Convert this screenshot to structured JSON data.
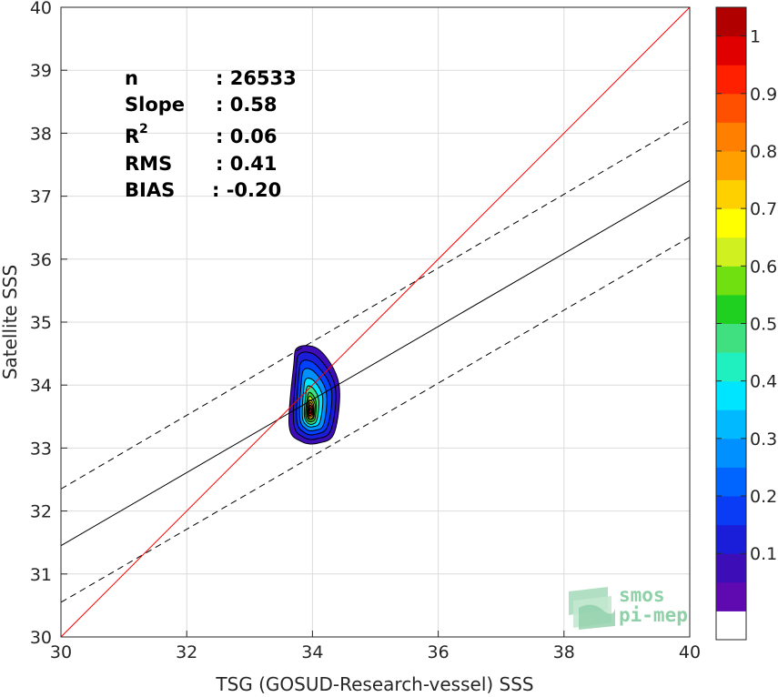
{
  "chart_data": {
    "type": "contour-scatter",
    "xlabel": "TSG (GOSUD-Research-vessel) SSS",
    "ylabel": "Satellite SSS",
    "xlim": [
      30,
      40
    ],
    "ylim": [
      30,
      40
    ],
    "x_ticks": [
      "30",
      "32",
      "34",
      "36",
      "38",
      "40"
    ],
    "y_ticks": [
      "30",
      "31",
      "32",
      "33",
      "34",
      "35",
      "36",
      "37",
      "38",
      "39",
      "40"
    ],
    "grid": true,
    "stats": {
      "n_label": "n",
      "n_value": ": 26533",
      "slope_label": "Slope",
      "slope_value": ": 0.58",
      "r2_label": "R",
      "r2_sup": "2",
      "r2_value": ": 0.06",
      "rms_label": "RMS",
      "rms_value": ": 0.41",
      "bias_label": "BIAS",
      "bias_value": ": -0.20"
    },
    "lines": {
      "one_to_one": {
        "x": [
          30,
          40
        ],
        "y": [
          30,
          40
        ],
        "color": "#ff0000"
      },
      "regression": {
        "x": [
          30,
          40
        ],
        "y": [
          31.45,
          37.25
        ],
        "color": "#000000"
      },
      "upper_bound": {
        "x": [
          30,
          40
        ],
        "y": [
          32.35,
          38.2
        ],
        "color": "#000000",
        "style": "dashed"
      },
      "lower_bound": {
        "x": [
          30,
          40
        ],
        "y": [
          30.55,
          36.35
        ],
        "color": "#000000",
        "style": "dashed"
      }
    },
    "density_peak": {
      "x": 33.97,
      "y": 33.6
    },
    "contour_levels": [
      {
        "level": 0.05,
        "x": [
          33.77,
          34.12,
          34.42,
          34.35,
          34.1,
          33.83,
          33.63,
          33.7
        ],
        "y": [
          34.6,
          34.55,
          34.02,
          33.25,
          33.08,
          33.1,
          33.35,
          34.3
        ],
        "color": "#3d0db7"
      },
      {
        "level": 0.1,
        "x": [
          33.8,
          34.08,
          34.36,
          34.3,
          34.08,
          33.86,
          33.7,
          33.74
        ],
        "y": [
          34.5,
          34.45,
          33.98,
          33.3,
          33.15,
          33.17,
          33.4,
          34.22
        ],
        "color": "#1a1ed9"
      },
      {
        "level": 0.15,
        "x": [
          33.84,
          34.06,
          34.3,
          34.24,
          34.05,
          33.88,
          33.75,
          33.78
        ],
        "y": [
          34.38,
          34.32,
          33.93,
          33.35,
          33.22,
          33.24,
          33.44,
          34.12
        ],
        "color": "#0040ff"
      },
      {
        "level": 0.2,
        "x": [
          33.87,
          34.04,
          34.22,
          34.18,
          34.03,
          33.9,
          33.8,
          33.82
        ],
        "y": [
          34.25,
          34.2,
          33.88,
          33.38,
          33.28,
          33.3,
          33.47,
          34.02
        ],
        "color": "#0090ff"
      },
      {
        "level": 0.25,
        "x": [
          33.9,
          34.03,
          34.16,
          34.12,
          34.01,
          33.91,
          33.84,
          33.86
        ],
        "y": [
          34.1,
          34.06,
          33.82,
          33.42,
          33.34,
          33.36,
          33.5,
          33.92
        ],
        "color": "#00e5ff"
      },
      {
        "level": 0.35,
        "x": [
          33.92,
          34.02,
          34.1,
          34.07,
          34.0,
          33.92,
          33.87,
          33.89
        ],
        "y": [
          33.98,
          33.94,
          33.76,
          33.45,
          33.38,
          33.4,
          33.52,
          33.82
        ],
        "color": "#40e080"
      },
      {
        "level": 0.45,
        "x": [
          33.94,
          34.01,
          34.06,
          34.04,
          33.99,
          33.93,
          33.89,
          33.91
        ],
        "y": [
          33.88,
          33.84,
          33.71,
          33.47,
          33.42,
          33.43,
          33.53,
          33.75
        ],
        "color": "#30d030"
      },
      {
        "level": 0.55,
        "x": [
          33.95,
          34.0,
          34.04,
          34.02,
          33.98,
          33.94,
          33.91,
          33.92
        ],
        "y": [
          33.82,
          33.78,
          33.68,
          33.49,
          33.45,
          33.46,
          33.54,
          33.7
        ],
        "color": "#d0f020"
      },
      {
        "level": 0.65,
        "x": [
          33.95,
          34.0,
          34.02,
          34.01,
          33.98,
          33.94,
          33.92,
          33.93
        ],
        "y": [
          33.76,
          33.73,
          33.65,
          33.5,
          33.47,
          33.48,
          33.55,
          33.66
        ],
        "color": "#ffd000"
      },
      {
        "level": 0.75,
        "x": [
          33.96,
          33.99,
          34.01,
          34.0,
          33.97,
          33.95,
          33.93,
          33.94
        ],
        "y": [
          33.72,
          33.7,
          33.63,
          33.52,
          33.5,
          33.5,
          33.56,
          33.64
        ],
        "color": "#ff8000"
      },
      {
        "level": 0.85,
        "x": [
          33.96,
          33.99,
          34.0,
          33.99,
          33.97,
          33.95,
          33.94,
          33.95
        ],
        "y": [
          33.68,
          33.66,
          33.61,
          33.54,
          33.52,
          33.52,
          33.57,
          33.62
        ],
        "color": "#ff2000"
      },
      {
        "level": 0.95,
        "x": [
          33.97,
          33.98,
          33.99,
          33.98,
          33.97,
          33.96,
          33.95,
          33.96
        ],
        "y": [
          33.64,
          33.63,
          33.6,
          33.56,
          33.55,
          33.55,
          33.58,
          33.61
        ],
        "color": "#b00000"
      }
    ],
    "colorbar": {
      "ticks": [
        "0.1",
        "0.2",
        "0.3",
        "0.4",
        "0.5",
        "0.6",
        "0.7",
        "0.8",
        "0.9",
        "1"
      ],
      "colors": [
        "#ffffff",
        "#5e0ab0",
        "#3d0db7",
        "#1a1ed9",
        "#0a3cf5",
        "#0064ff",
        "#0090ff",
        "#00b9ff",
        "#00e5ff",
        "#20f0c0",
        "#40e080",
        "#20d020",
        "#70e010",
        "#d0f020",
        "#ffff00",
        "#ffd000",
        "#ffa000",
        "#ff8000",
        "#ff5000",
        "#ff2000",
        "#e00000",
        "#b00000"
      ]
    },
    "logo": {
      "line1": "smos",
      "line2": "pi-mep"
    }
  }
}
